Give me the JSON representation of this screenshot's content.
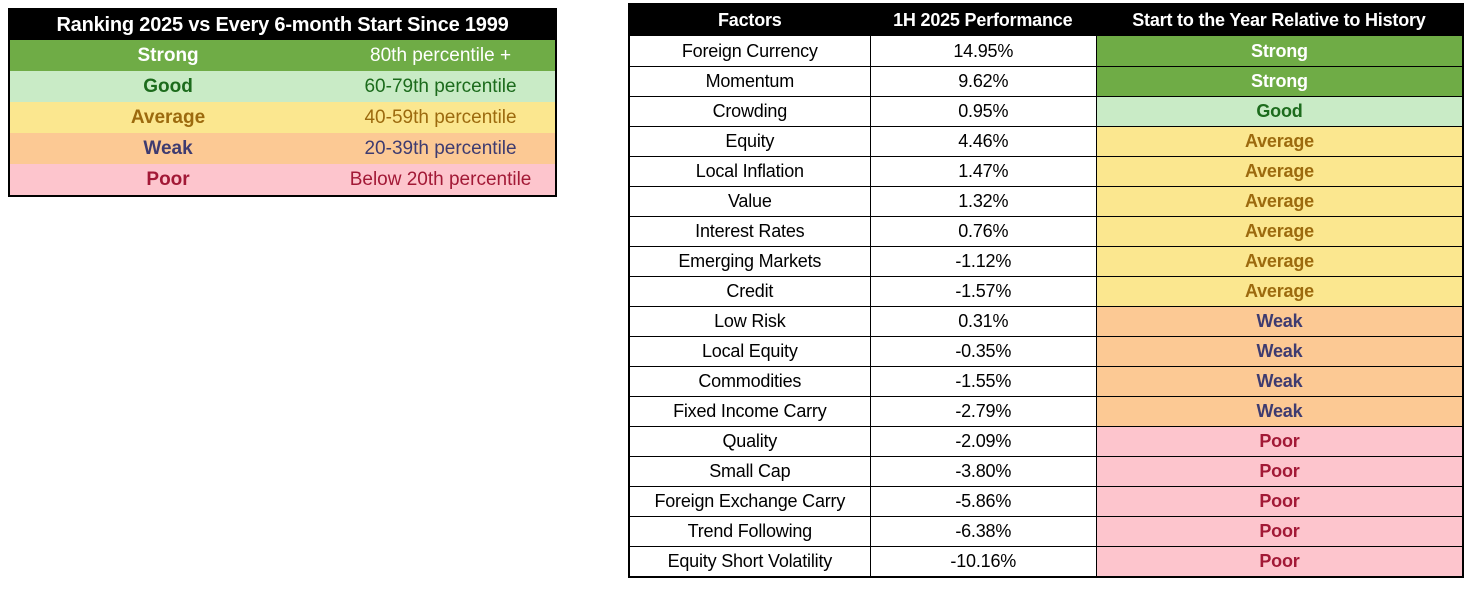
{
  "legend": {
    "title": "Ranking 2025 vs Every 6-month Start Since 1999",
    "rows": [
      {
        "label": "Strong",
        "range": "80th percentile +",
        "status": "strong"
      },
      {
        "label": "Good",
        "range": "60-79th percentile",
        "status": "good"
      },
      {
        "label": "Average",
        "range": "40-59th percentile",
        "status": "average"
      },
      {
        "label": "Weak",
        "range": "20-39th percentile",
        "status": "weak"
      },
      {
        "label": "Poor",
        "range": "Below 20th percentile",
        "status": "poor"
      }
    ]
  },
  "factor_table": {
    "headers": [
      "Factors",
      "1H 2025 Performance",
      "Start to the Year Relative to History"
    ],
    "rows": [
      {
        "factor": "Foreign Currency",
        "performance": "14.95%",
        "rating": "Strong",
        "status": "strong"
      },
      {
        "factor": "Momentum",
        "performance": "9.62%",
        "rating": "Strong",
        "status": "strong"
      },
      {
        "factor": "Crowding",
        "performance": "0.95%",
        "rating": "Good",
        "status": "good"
      },
      {
        "factor": "Equity",
        "performance": "4.46%",
        "rating": "Average",
        "status": "average"
      },
      {
        "factor": "Local Inflation",
        "performance": "1.47%",
        "rating": "Average",
        "status": "average"
      },
      {
        "factor": "Value",
        "performance": "1.32%",
        "rating": "Average",
        "status": "average"
      },
      {
        "factor": "Interest Rates",
        "performance": "0.76%",
        "rating": "Average",
        "status": "average"
      },
      {
        "factor": "Emerging Markets",
        "performance": "-1.12%",
        "rating": "Average",
        "status": "average"
      },
      {
        "factor": "Credit",
        "performance": "-1.57%",
        "rating": "Average",
        "status": "average"
      },
      {
        "factor": "Low Risk",
        "performance": "0.31%",
        "rating": "Weak",
        "status": "weak"
      },
      {
        "factor": "Local Equity",
        "performance": "-0.35%",
        "rating": "Weak",
        "status": "weak"
      },
      {
        "factor": "Commodities",
        "performance": "-1.55%",
        "rating": "Weak",
        "status": "weak"
      },
      {
        "factor": "Fixed Income Carry",
        "performance": "-2.79%",
        "rating": "Weak",
        "status": "weak"
      },
      {
        "factor": "Quality",
        "performance": "-2.09%",
        "rating": "Poor",
        "status": "poor"
      },
      {
        "factor": "Small Cap",
        "performance": "-3.80%",
        "rating": "Poor",
        "status": "poor"
      },
      {
        "factor": "Foreign Exchange Carry",
        "performance": "-5.86%",
        "rating": "Poor",
        "status": "poor"
      },
      {
        "factor": "Trend Following",
        "performance": "-6.38%",
        "rating": "Poor",
        "status": "poor"
      },
      {
        "factor": "Equity Short Volatility",
        "performance": "-10.16%",
        "rating": "Poor",
        "status": "poor"
      }
    ]
  },
  "status_colors": {
    "strong": {
      "bg": "#6FAC46",
      "text": "#FFFFFF"
    },
    "good": {
      "bg": "#C9EBC6",
      "text": "#1C6B1C"
    },
    "average": {
      "bg": "#FBE78F",
      "text": "#9C6A0E"
    },
    "weak": {
      "bg": "#FCC994",
      "text": "#3E3B70"
    },
    "poor": {
      "bg": "#FDC5CD",
      "text": "#A21936"
    }
  },
  "header_colors": {
    "bg": "#000000",
    "text": "#FFFFFF"
  },
  "chart_data": {
    "type": "table",
    "title": "Ranking 2025 vs Every 6-month Start Since 1999",
    "columns": [
      "Factors",
      "1H 2025 Performance",
      "Start to the Year Relative to History"
    ],
    "rows": [
      [
        "Foreign Currency",
        14.95,
        "Strong"
      ],
      [
        "Momentum",
        9.62,
        "Strong"
      ],
      [
        "Crowding",
        0.95,
        "Good"
      ],
      [
        "Equity",
        4.46,
        "Average"
      ],
      [
        "Local Inflation",
        1.47,
        "Average"
      ],
      [
        "Value",
        1.32,
        "Average"
      ],
      [
        "Interest Rates",
        0.76,
        "Average"
      ],
      [
        "Emerging Markets",
        -1.12,
        "Average"
      ],
      [
        "Credit",
        -1.57,
        "Average"
      ],
      [
        "Low Risk",
        0.31,
        "Weak"
      ],
      [
        "Local Equity",
        -0.35,
        "Weak"
      ],
      [
        "Commodities",
        -1.55,
        "Weak"
      ],
      [
        "Fixed Income Carry",
        -2.79,
        "Weak"
      ],
      [
        "Quality",
        -2.09,
        "Poor"
      ],
      [
        "Small Cap",
        -3.8,
        "Poor"
      ],
      [
        "Foreign Exchange Carry",
        -5.86,
        "Poor"
      ],
      [
        "Trend Following",
        -6.38,
        "Poor"
      ],
      [
        "Equity Short Volatility",
        -10.16,
        "Poor"
      ]
    ],
    "rating_scale": [
      {
        "rating": "Strong",
        "range": "80th percentile +"
      },
      {
        "rating": "Good",
        "range": "60-79th percentile"
      },
      {
        "rating": "Average",
        "range": "40-59th percentile"
      },
      {
        "rating": "Weak",
        "range": "20-39th percentile"
      },
      {
        "rating": "Poor",
        "range": "Below 20th percentile"
      }
    ],
    "legend_position": "left",
    "grid": true
  }
}
